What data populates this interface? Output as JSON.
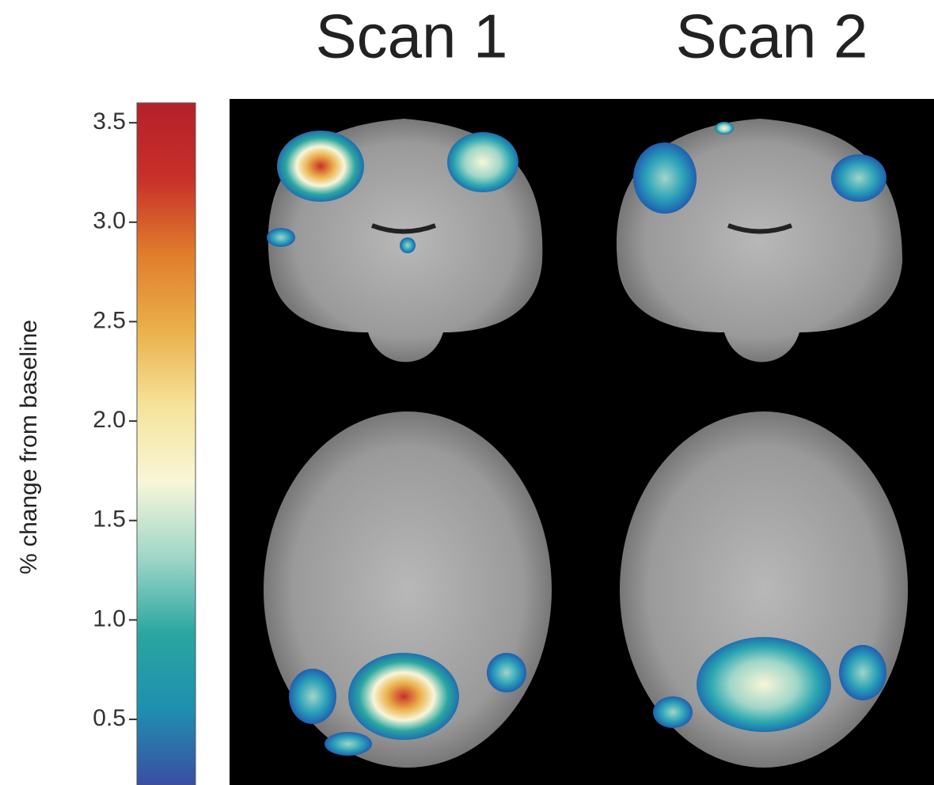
{
  "chart_data": {
    "type": "colorbar",
    "column_titles": [
      "Scan 1",
      "Scan 2"
    ],
    "ylabel": "% change from baseline",
    "ylim": [
      0.17,
      3.6
    ],
    "yticks": [
      0.5,
      {
        "value": 1,
        "label": "1.0"
      },
      1.5,
      {
        "value": 2,
        "label": "2.0"
      },
      2.5,
      {
        "value": 3,
        "label": "3.0"
      },
      3.5
    ],
    "colormap": [
      "#3a4ea3",
      "#1f8fb0",
      "#2aa6a0",
      "#9fd6c8",
      "#f8f6d8",
      "#f6e39a",
      "#eab04a",
      "#e07d2c",
      "#c8302a",
      "#b5202a"
    ]
  }
}
